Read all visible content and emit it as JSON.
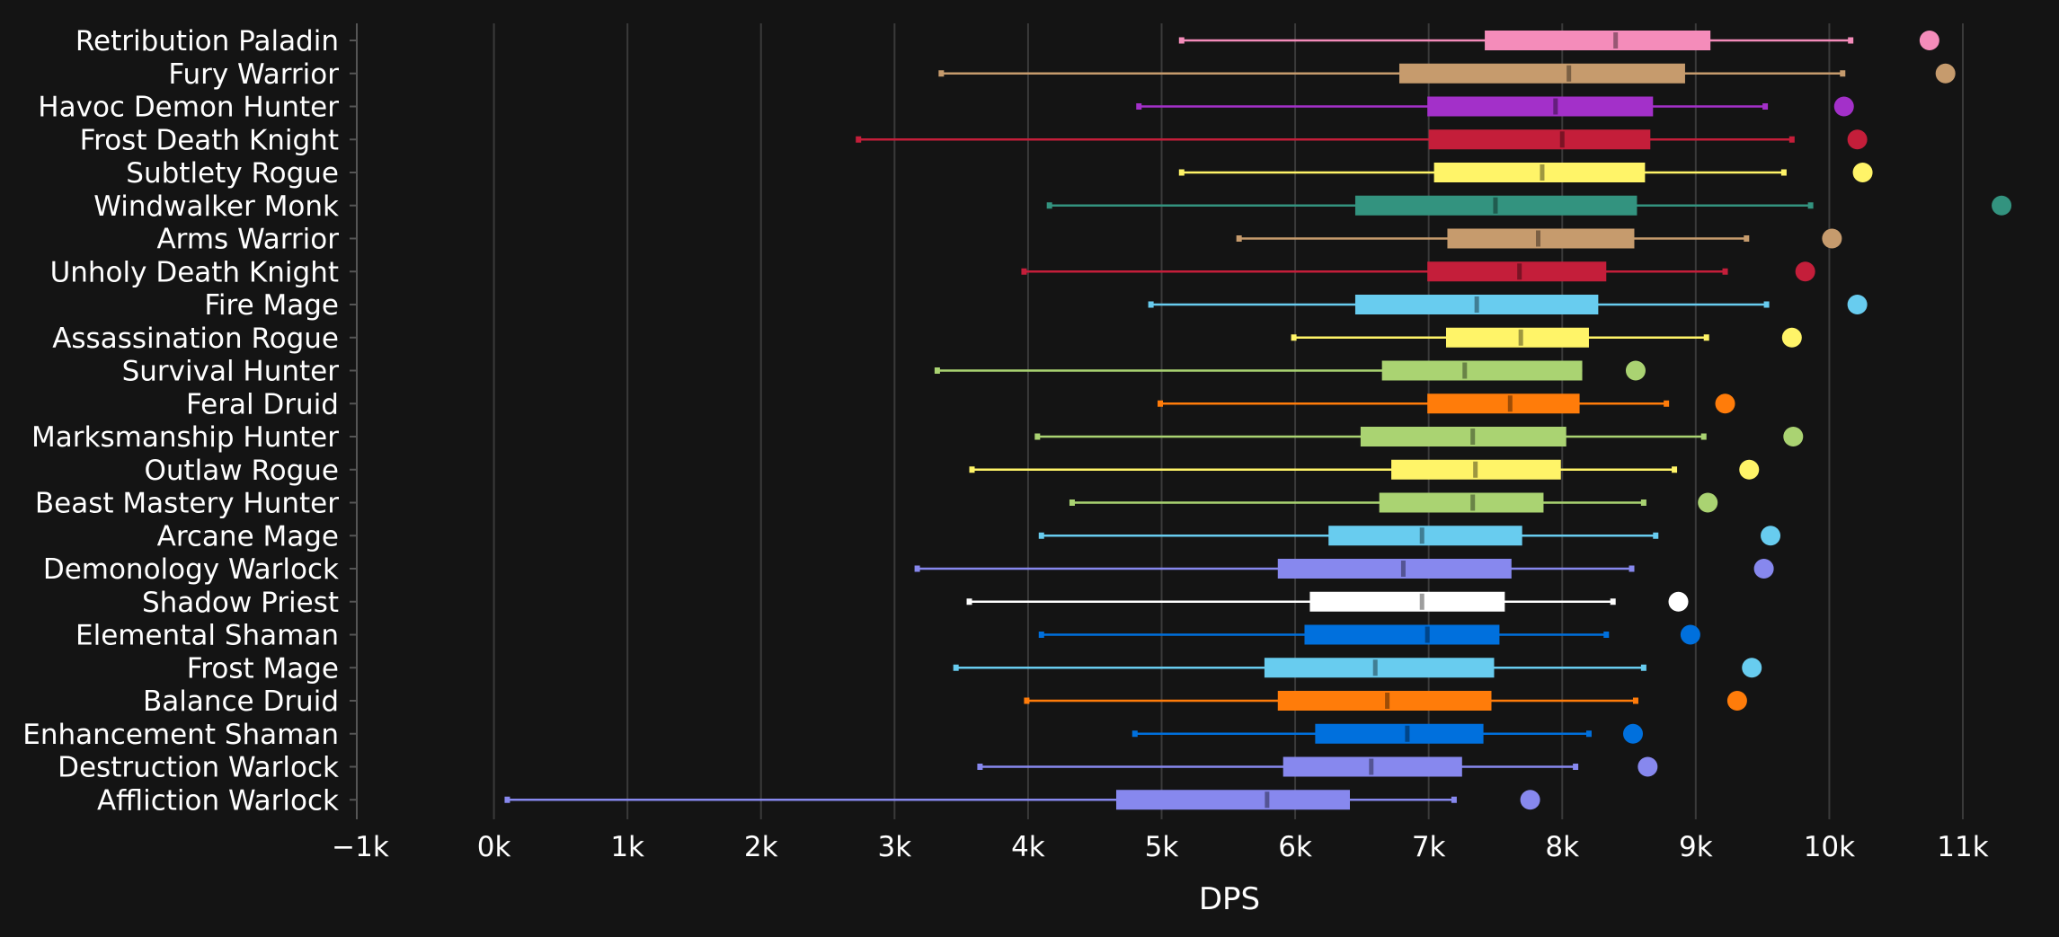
{
  "chart_data": {
    "type": "box",
    "orientation": "horizontal",
    "xlabel": "DPS",
    "xlim": [
      -1000,
      11000
    ],
    "x_ticks": [
      -1000,
      0,
      1000,
      2000,
      3000,
      4000,
      5000,
      6000,
      7000,
      8000,
      9000,
      10000,
      11000
    ],
    "x_tick_labels": [
      "−1k",
      "0k",
      "1k",
      "2k",
      "3k",
      "4k",
      "5k",
      "6k",
      "7k",
      "8k",
      "9k",
      "10k",
      "11k"
    ],
    "grid": "vertical",
    "series": [
      {
        "name": "Retribution Paladin",
        "color": "#F48CBA",
        "min": 5150,
        "q1": 7420,
        "median": 8400,
        "q3": 9110,
        "max": 10160,
        "outlier": 10750
      },
      {
        "name": "Fury Warrior",
        "color": "#C69B6D",
        "min": 3350,
        "q1": 6780,
        "median": 8050,
        "q3": 8920,
        "max": 10100,
        "outlier": 10870
      },
      {
        "name": "Havoc Demon Hunter",
        "color": "#A330C9",
        "min": 4830,
        "q1": 6990,
        "median": 7950,
        "q3": 8680,
        "max": 9520,
        "outlier": 10110
      },
      {
        "name": "Frost Death Knight",
        "color": "#C41E3A",
        "min": 2730,
        "q1": 7000,
        "median": 8000,
        "q3": 8660,
        "max": 9720,
        "outlier": 10210
      },
      {
        "name": "Subtlety Rogue",
        "color": "#FFF468",
        "min": 5150,
        "q1": 7040,
        "median": 7850,
        "q3": 8620,
        "max": 9660,
        "outlier": 10250
      },
      {
        "name": "Windwalker Monk",
        "color": "#33937F",
        "min": 4160,
        "q1": 6450,
        "median": 7500,
        "q3": 8560,
        "max": 9860,
        "outlier": 11290
      },
      {
        "name": "Arms Warrior",
        "color": "#C69B6D",
        "min": 5580,
        "q1": 7140,
        "median": 7820,
        "q3": 8540,
        "max": 9380,
        "outlier": 10020
      },
      {
        "name": "Unholy Death Knight",
        "color": "#C41E3A",
        "min": 3970,
        "q1": 6990,
        "median": 7680,
        "q3": 8330,
        "max": 9220,
        "outlier": 9820
      },
      {
        "name": "Fire Mage",
        "color": "#68CCEF",
        "min": 4920,
        "q1": 6450,
        "median": 7360,
        "q3": 8270,
        "max": 9530,
        "outlier": 10210
      },
      {
        "name": "Assassination Rogue",
        "color": "#FFF468",
        "min": 5990,
        "q1": 7130,
        "median": 7690,
        "q3": 8200,
        "max": 9080,
        "outlier": 9720
      },
      {
        "name": "Survival Hunter",
        "color": "#AAD372",
        "min": 3320,
        "q1": 6650,
        "median": 7270,
        "q3": 8150,
        "max": null,
        "outlier": 8550
      },
      {
        "name": "Feral Druid",
        "color": "#FF7C0A",
        "min": 4990,
        "q1": 6990,
        "median": 7610,
        "q3": 8130,
        "max": 8780,
        "outlier": 9220
      },
      {
        "name": "Marksmanship Hunter",
        "color": "#AAD372",
        "min": 4070,
        "q1": 6490,
        "median": 7330,
        "q3": 8030,
        "max": 9060,
        "outlier": 9730
      },
      {
        "name": "Outlaw Rogue",
        "color": "#FFF468",
        "min": 3580,
        "q1": 6720,
        "median": 7350,
        "q3": 7990,
        "max": 8840,
        "outlier": 9400
      },
      {
        "name": "Beast Mastery Hunter",
        "color": "#AAD372",
        "min": 4330,
        "q1": 6630,
        "median": 7330,
        "q3": 7860,
        "max": 8610,
        "outlier": 9090
      },
      {
        "name": "Arcane Mage",
        "color": "#68CCEF",
        "min": 4100,
        "q1": 6250,
        "median": 6950,
        "q3": 7700,
        "max": 8700,
        "outlier": 9560
      },
      {
        "name": "Demonology Warlock",
        "color": "#8788EE",
        "min": 3170,
        "q1": 5870,
        "median": 6810,
        "q3": 7620,
        "max": 8520,
        "outlier": 9510
      },
      {
        "name": "Shadow Priest",
        "color": "#FFFFFF",
        "min": 3560,
        "q1": 6110,
        "median": 6950,
        "q3": 7570,
        "max": 8380,
        "outlier": 8870
      },
      {
        "name": "Elemental Shaman",
        "color": "#0070DD",
        "min": 4100,
        "q1": 6070,
        "median": 6990,
        "q3": 7530,
        "max": 8330,
        "outlier": 8960
      },
      {
        "name": "Frost Mage",
        "color": "#68CCEF",
        "min": 3460,
        "q1": 5770,
        "median": 6600,
        "q3": 7490,
        "max": 8610,
        "outlier": 9420
      },
      {
        "name": "Balance Druid",
        "color": "#FF7C0A",
        "min": 3990,
        "q1": 5870,
        "median": 6690,
        "q3": 7470,
        "max": 8550,
        "outlier": 9310
      },
      {
        "name": "Enhancement Shaman",
        "color": "#0070DD",
        "min": 4800,
        "q1": 6150,
        "median": 6840,
        "q3": 7410,
        "max": 8200,
        "outlier": 8530
      },
      {
        "name": "Destruction Warlock",
        "color": "#8788EE",
        "min": 3640,
        "q1": 5910,
        "median": 6570,
        "q3": 7250,
        "max": 8100,
        "outlier": 8640
      },
      {
        "name": "Affliction Warlock",
        "color": "#8788EE",
        "min": 100,
        "q1": 4660,
        "median": 5790,
        "q3": 6410,
        "max": 7190,
        "outlier": 7760
      }
    ]
  }
}
